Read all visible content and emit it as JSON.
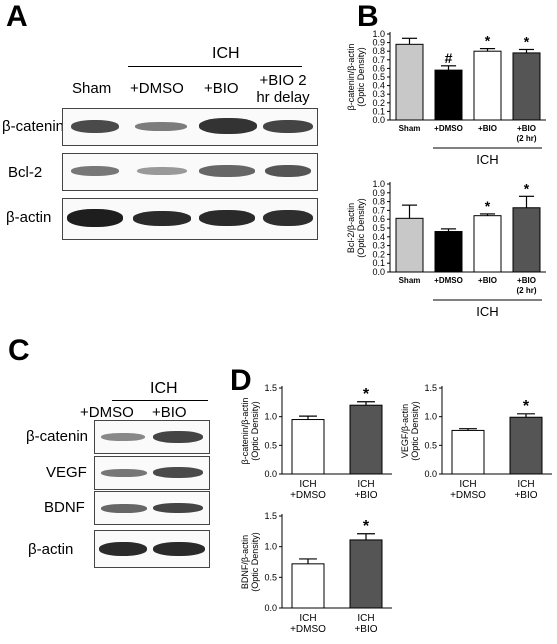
{
  "panel_a": {
    "letter": "A",
    "group_label": "ICH",
    "columns": [
      "Sham",
      "+DMSO",
      "+BIO",
      "+BIO 2 hr delay"
    ],
    "rows": [
      "β-catenin",
      "Bcl-2",
      "β-actin"
    ]
  },
  "panel_b": {
    "letter": "B"
  },
  "panel_c": {
    "letter": "C",
    "group_label": "ICH",
    "columns": [
      "+DMSO",
      "+BIO"
    ],
    "rows": [
      "β-catenin",
      "VEGF",
      "BDNF",
      "β-actin"
    ]
  },
  "panel_d": {
    "letter": "D"
  },
  "chart_data": [
    {
      "type": "bar",
      "panel": "B",
      "ylabel": "β-catenin/β-actin (Optic Density)",
      "categories": [
        "Sham",
        "+DMSO",
        "+BIO",
        "+BIO (2 hr)"
      ],
      "values": [
        0.88,
        0.58,
        0.8,
        0.78
      ],
      "errors": [
        0.07,
        0.05,
        0.03,
        0.04
      ],
      "colors": [
        "#c8c8c8",
        "#000000",
        "#ffffff",
        "#555555"
      ],
      "markers": [
        "",
        "#",
        "*",
        "*"
      ],
      "group_label": "ICH",
      "ylim": [
        0,
        1.0
      ],
      "yticks": [
        "0.0",
        "0.1",
        "0.2",
        "0.3",
        "0.4",
        "0.5",
        "0.6",
        "0.7",
        "0.8",
        "0.9",
        "1.0"
      ]
    },
    {
      "type": "bar",
      "panel": "B",
      "ylabel": "Bcl-2/β-actin (Optic Density)",
      "categories": [
        "Sham",
        "+DMSO",
        "+BIO",
        "+BIO (2 hr)"
      ],
      "values": [
        0.61,
        0.46,
        0.64,
        0.73
      ],
      "errors": [
        0.15,
        0.03,
        0.02,
        0.13
      ],
      "colors": [
        "#c8c8c8",
        "#000000",
        "#ffffff",
        "#555555"
      ],
      "markers": [
        "",
        "",
        "*",
        "*"
      ],
      "group_label": "ICH",
      "ylim": [
        0,
        1.0
      ],
      "yticks": [
        "0.0",
        "0.1",
        "0.2",
        "0.3",
        "0.4",
        "0.5",
        "0.6",
        "0.7",
        "0.8",
        "0.9",
        "1.0"
      ]
    },
    {
      "type": "bar",
      "panel": "D",
      "ylabel": "β-catenin/β-actin (Optic Density)",
      "categories": [
        "ICH +DMSO",
        "ICH +BIO"
      ],
      "values": [
        0.95,
        1.2
      ],
      "errors": [
        0.06,
        0.06
      ],
      "colors": [
        "#ffffff",
        "#555555"
      ],
      "markers": [
        "",
        "*"
      ],
      "ylim": [
        0,
        1.5
      ],
      "yticks": [
        "0.0",
        "0.5",
        "1.0",
        "1.5"
      ]
    },
    {
      "type": "bar",
      "panel": "D",
      "ylabel": "VEGF/β-actin (Optic Density)",
      "categories": [
        "ICH +DMSO",
        "ICH +BIO"
      ],
      "values": [
        0.76,
        0.99
      ],
      "errors": [
        0.03,
        0.06
      ],
      "colors": [
        "#ffffff",
        "#555555"
      ],
      "markers": [
        "",
        "*"
      ],
      "ylim": [
        0,
        1.5
      ],
      "yticks": [
        "0.0",
        "0.5",
        "1.0",
        "1.5"
      ]
    },
    {
      "type": "bar",
      "panel": "D",
      "ylabel": "BDNF/β-actin (Optic Density)",
      "categories": [
        "ICH +DMSO",
        "ICH +BIO"
      ],
      "values": [
        0.72,
        1.11
      ],
      "errors": [
        0.08,
        0.1
      ],
      "colors": [
        "#ffffff",
        "#555555"
      ],
      "markers": [
        "",
        "*"
      ],
      "ylim": [
        0,
        1.5
      ],
      "yticks": [
        "0.0",
        "0.5",
        "1.0",
        "1.5"
      ]
    }
  ]
}
